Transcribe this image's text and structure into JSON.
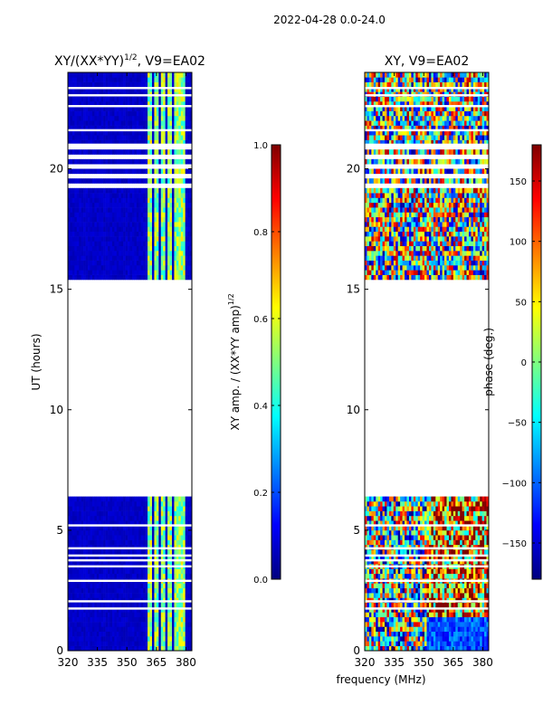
{
  "figure": {
    "suptitle": "2022-04-28 0.0-24.0",
    "xlabel_shared": "frequency (MHz)"
  },
  "colors": {
    "background": "#ffffff",
    "jet_stops": [
      "#00007f",
      "#0000ff",
      "#007fff",
      "#00ffff",
      "#7fff7f",
      "#ffff00",
      "#ff7f00",
      "#ff0000",
      "#7f0000"
    ]
  },
  "chart_data": [
    {
      "type": "heatmap",
      "title": "XY/(XX*YY)^1/2, V9=EA02",
      "title_main": "XY/(XX*YY)",
      "title_sup": "1/2",
      "title_rest": ", V9=EA02",
      "xlabel": "",
      "ylabel": "UT (hours)",
      "xlim": [
        320,
        383
      ],
      "ylim": [
        0,
        24
      ],
      "xticks": [
        320,
        335,
        350,
        365,
        380
      ],
      "yticks": [
        0,
        5,
        10,
        15,
        20
      ],
      "data_blocks_ut": [
        [
          0,
          6.4
        ],
        [
          15.5,
          24
        ]
      ],
      "gap_rows_ut": [
        1.75,
        2.05,
        2.9,
        3.5,
        3.75,
        3.95,
        4.25,
        5.2,
        21.0,
        21.6,
        22.6,
        23.05,
        23.35
      ],
      "bright_channels_mhz": [
        362,
        365,
        368,
        372,
        375,
        378
      ],
      "colorbar": {
        "label": "XY amp. / (XX*YY amp)^1/2",
        "label_main": "XY amp. / (XX*YY amp)",
        "label_sup": "1/2",
        "range": [
          0.0,
          1.0
        ],
        "ticks": [
          0.0,
          0.2,
          0.4,
          0.6,
          0.8,
          1.0
        ],
        "tick_labels": [
          "0.0",
          "0.2",
          "0.4",
          "0.6",
          "0.8",
          "1.0"
        ]
      }
    },
    {
      "type": "heatmap",
      "title": "XY, V9=EA02",
      "xlabel": "frequency (MHz)",
      "ylabel": "",
      "xlim": [
        320,
        383
      ],
      "ylim": [
        0,
        24
      ],
      "xticks": [
        320,
        335,
        350,
        365,
        380
      ],
      "yticks": [
        0,
        5,
        10,
        15,
        20
      ],
      "data_blocks_ut": [
        [
          0,
          6.4
        ],
        [
          15.5,
          24
        ]
      ],
      "gap_rows_ut": [
        1.75,
        2.05,
        2.9,
        3.5,
        3.75,
        3.95,
        4.25,
        5.2,
        21.0,
        21.6,
        22.6,
        23.05,
        23.35
      ],
      "colorbar": {
        "label": "phase (deg.)",
        "range": [
          -180,
          180
        ],
        "ticks": [
          -150,
          -100,
          -50,
          0,
          50,
          100,
          150
        ],
        "tick_labels": [
          "−150",
          "−100",
          "−50",
          "0",
          "50",
          "100",
          "150"
        ]
      }
    }
  ]
}
